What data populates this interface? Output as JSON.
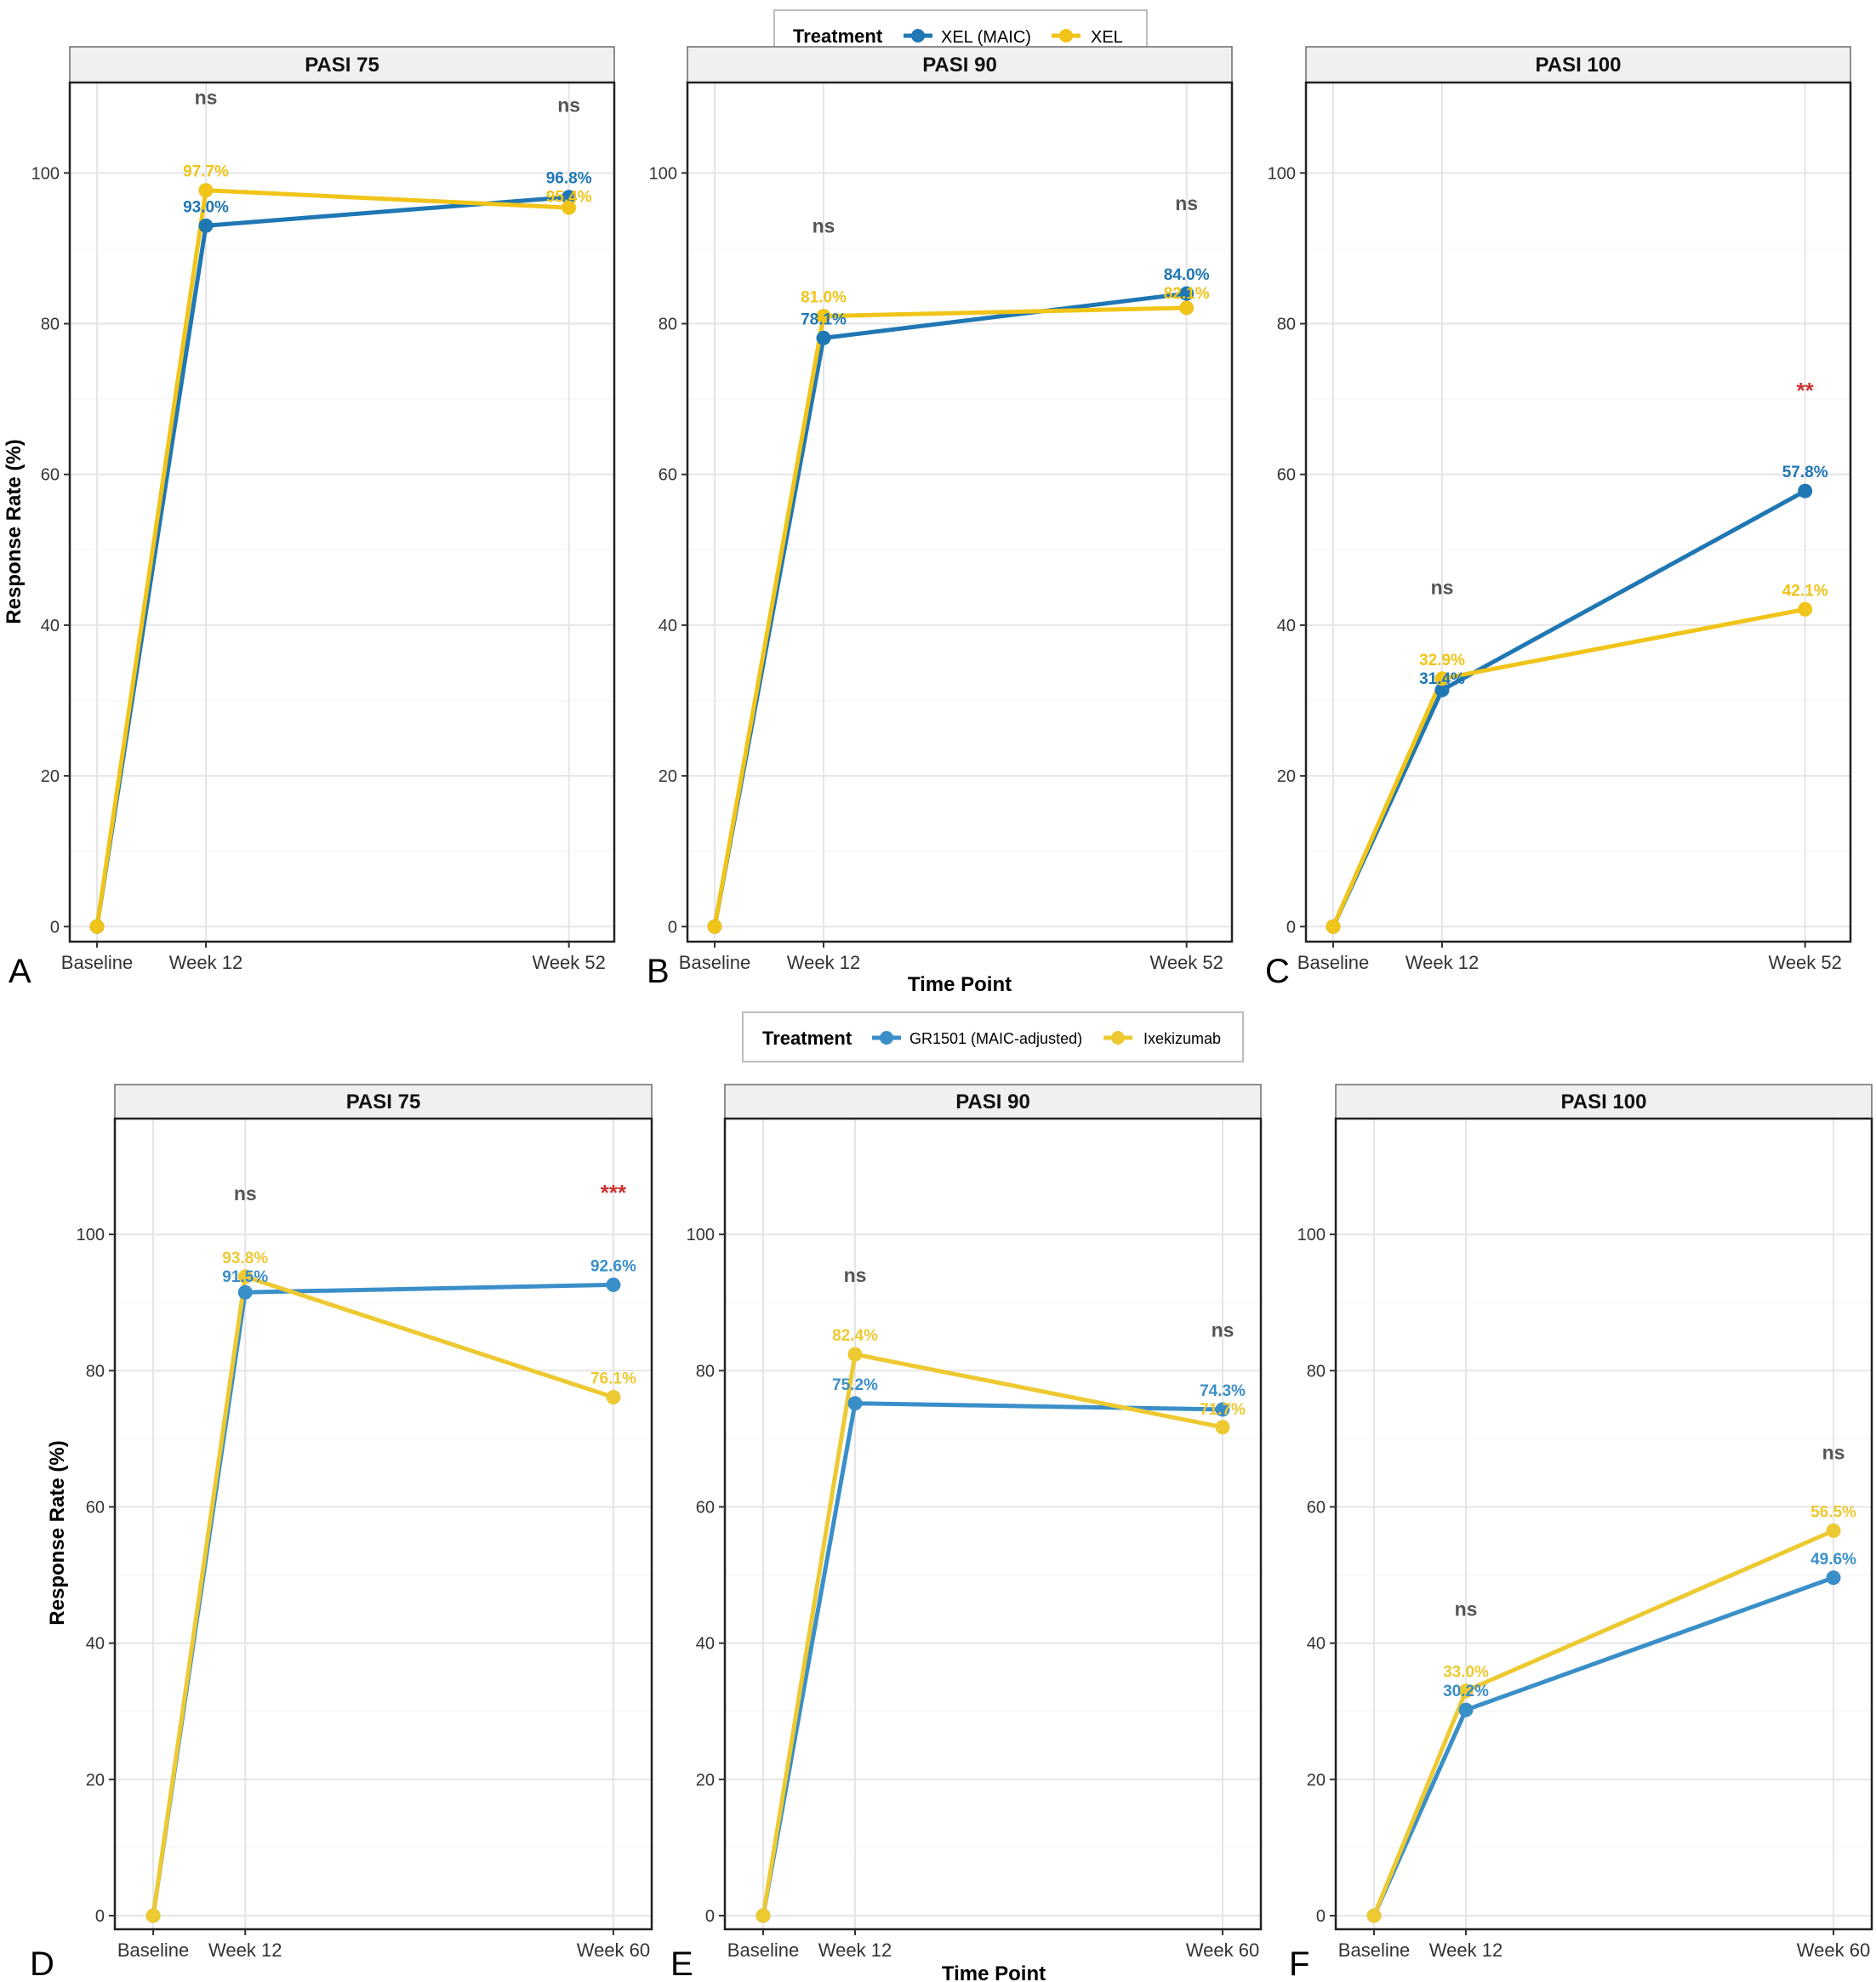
{
  "figure": {
    "top_legend": {
      "title": "Treatment",
      "entries": [
        {
          "label": "XEL (MAIC)",
          "color": "#1f77b4"
        },
        {
          "label": "XEL",
          "color": "#f0c419"
        }
      ]
    },
    "bottom_legend": {
      "title": "Treatment",
      "entries": [
        {
          "label": "GR1501 (MAIC-adjusted)",
          "color": "#3a8fc8"
        },
        {
          "label": "Ixekizumab",
          "color": "#edc932"
        }
      ]
    },
    "ylabel": "Response Rate (%)",
    "xlabel": "Time Point",
    "panel_letters": [
      "A",
      "B",
      "C",
      "D",
      "E",
      "F"
    ],
    "colors": {
      "sig_ns": "#555555",
      "sig_star": "#cc3333",
      "grid": "#e5e5e5",
      "strip": "#f0f0f0"
    }
  },
  "chart_data": [
    {
      "type": "line",
      "panel": "A",
      "title": "PASI 75",
      "categories": [
        "Baseline",
        "Week 12",
        "Week 52"
      ],
      "x": [
        0,
        12,
        52
      ],
      "xlim": [
        -3,
        57
      ],
      "ylim": [
        -2,
        112
      ],
      "yticks": [
        0,
        20,
        40,
        60,
        80,
        100
      ],
      "series": [
        {
          "name": "XEL (MAIC)",
          "values": [
            0,
            93.0,
            96.8
          ],
          "labels": [
            "",
            "93.0%",
            "96.8%"
          ]
        },
        {
          "name": "XEL",
          "values": [
            0,
            97.7,
            95.4
          ],
          "labels": [
            "",
            "97.7%",
            "95.4%"
          ]
        }
      ],
      "significance": [
        {
          "x": 12,
          "y": 110,
          "label": "ns"
        },
        {
          "x": 52,
          "y": 109,
          "label": "ns"
        }
      ]
    },
    {
      "type": "line",
      "panel": "B",
      "title": "PASI 90",
      "categories": [
        "Baseline",
        "Week 12",
        "Week 52"
      ],
      "x": [
        0,
        12,
        52
      ],
      "xlim": [
        -3,
        57
      ],
      "ylim": [
        -2,
        112
      ],
      "yticks": [
        0,
        20,
        40,
        60,
        80,
        100
      ],
      "series": [
        {
          "name": "XEL (MAIC)",
          "values": [
            0,
            78.1,
            84.0
          ],
          "labels": [
            "",
            "78.1%",
            "84.0%"
          ]
        },
        {
          "name": "XEL",
          "values": [
            0,
            81.0,
            82.1
          ],
          "labels": [
            "",
            "81.0%",
            "82.1%"
          ]
        }
      ],
      "significance": [
        {
          "x": 12,
          "y": 93,
          "label": "ns"
        },
        {
          "x": 52,
          "y": 96,
          "label": "ns"
        }
      ]
    },
    {
      "type": "line",
      "panel": "C",
      "title": "PASI 100",
      "categories": [
        "Baseline",
        "Week 12",
        "Week 52"
      ],
      "x": [
        0,
        12,
        52
      ],
      "xlim": [
        -3,
        57
      ],
      "ylim": [
        -2,
        112
      ],
      "yticks": [
        0,
        20,
        40,
        60,
        80,
        100
      ],
      "series": [
        {
          "name": "XEL (MAIC)",
          "values": [
            0,
            31.4,
            57.8
          ],
          "labels": [
            "",
            "31.4%",
            "57.8%"
          ]
        },
        {
          "name": "XEL",
          "values": [
            0,
            32.9,
            42.1
          ],
          "labels": [
            "",
            "32.9%",
            "42.1%"
          ]
        }
      ],
      "significance": [
        {
          "x": 12,
          "y": 45,
          "label": "ns"
        },
        {
          "x": 52,
          "y": 71,
          "label": "**"
        }
      ]
    },
    {
      "type": "line",
      "panel": "D",
      "title": "PASI 75",
      "categories": [
        "Baseline",
        "Week 12",
        "Week 60"
      ],
      "x": [
        0,
        12,
        60
      ],
      "xlim": [
        -5,
        65
      ],
      "ylim": [
        -2,
        117
      ],
      "yticks": [
        0,
        20,
        40,
        60,
        80,
        100
      ],
      "series": [
        {
          "name": "GR1501 (MAIC-adjusted)",
          "values": [
            0,
            91.5,
            92.6
          ],
          "labels": [
            "",
            "91.5%",
            "92.6%"
          ]
        },
        {
          "name": "Ixekizumab",
          "values": [
            0,
            93.8,
            76.1
          ],
          "labels": [
            "",
            "93.8%",
            "76.1%"
          ]
        }
      ],
      "significance": [
        {
          "x": 12,
          "y": 106,
          "label": "ns"
        },
        {
          "x": 60,
          "y": 106,
          "label": "***"
        }
      ]
    },
    {
      "type": "line",
      "panel": "E",
      "title": "PASI 90",
      "categories": [
        "Baseline",
        "Week 12",
        "Week 60"
      ],
      "x": [
        0,
        12,
        60
      ],
      "xlim": [
        -5,
        65
      ],
      "ylim": [
        -2,
        117
      ],
      "yticks": [
        0,
        20,
        40,
        60,
        80,
        100
      ],
      "series": [
        {
          "name": "GR1501 (MAIC-adjusted)",
          "values": [
            0,
            75.2,
            74.3
          ],
          "labels": [
            "",
            "75.2%",
            "74.3%"
          ]
        },
        {
          "name": "Ixekizumab",
          "values": [
            0,
            82.4,
            71.7
          ],
          "labels": [
            "",
            "82.4%",
            "71.7%"
          ]
        }
      ],
      "significance": [
        {
          "x": 12,
          "y": 94,
          "label": "ns"
        },
        {
          "x": 60,
          "y": 86,
          "label": "ns"
        }
      ]
    },
    {
      "type": "line",
      "panel": "F",
      "title": "PASI 100",
      "categories": [
        "Baseline",
        "Week 12",
        "Week 60"
      ],
      "x": [
        0,
        12,
        60
      ],
      "xlim": [
        -5,
        65
      ],
      "ylim": [
        -2,
        117
      ],
      "yticks": [
        0,
        20,
        40,
        60,
        80,
        100
      ],
      "series": [
        {
          "name": "GR1501 (MAIC-adjusted)",
          "values": [
            0,
            30.2,
            49.6
          ],
          "labels": [
            "",
            "30.2%",
            "49.6%"
          ]
        },
        {
          "name": "Ixekizumab",
          "values": [
            0,
            33.0,
            56.5
          ],
          "labels": [
            "",
            "33.0%",
            "56.5%"
          ]
        }
      ],
      "significance": [
        {
          "x": 12,
          "y": 45,
          "label": "ns"
        },
        {
          "x": 60,
          "y": 68,
          "label": "ns"
        }
      ]
    }
  ]
}
